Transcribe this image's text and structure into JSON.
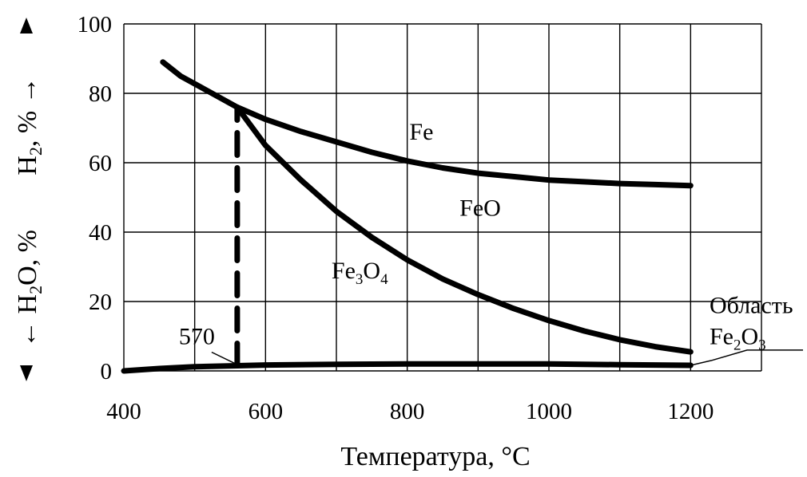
{
  "chart_data": {
    "type": "line",
    "xlabel": "Температура, °C",
    "ylabel_top": {
      "base": "H",
      "sub": "2",
      "rest": ", % →"
    },
    "ylabel_bottom": {
      "prefix": "← H",
      "sub": "2",
      "rest": "O, %"
    },
    "x_ticks": [
      400,
      600,
      800,
      1000,
      1200
    ],
    "y_ticks": [
      0,
      20,
      40,
      60,
      80,
      100
    ],
    "xlim": [
      400,
      1300
    ],
    "ylim": [
      0,
      100
    ],
    "grid": true,
    "series": [
      {
        "x": [
          455,
          480,
          520,
          560,
          600,
          650,
          700,
          750,
          800,
          850,
          900,
          950,
          1000,
          1050,
          1100,
          1150,
          1200
        ],
        "y": [
          89,
          85,
          80.5,
          76,
          72.5,
          69,
          66,
          63,
          60.5,
          58.5,
          57,
          56,
          55,
          54.5,
          54,
          53.7,
          53.4
        ]
      },
      {
        "x": [
          560,
          600,
          650,
          700,
          750,
          800,
          850,
          900,
          950,
          1000,
          1050,
          1100,
          1150,
          1200
        ],
        "y": [
          76,
          65,
          55,
          46,
          38.5,
          32,
          26.5,
          22,
          18,
          14.5,
          11.5,
          9,
          7,
          5.5
        ]
      },
      {
        "x": [
          400,
          450,
          500,
          560,
          600,
          700,
          800,
          900,
          1000,
          1100,
          1200
        ],
        "y": [
          0,
          0.7,
          1.2,
          1.5,
          1.7,
          1.9,
          2,
          2,
          2,
          1.8,
          1.6
        ]
      },
      {
        "style": "dashed",
        "x": [
          560,
          560
        ],
        "y": [
          1.5,
          76
        ]
      }
    ],
    "annotations": [
      {
        "label": "Fe",
        "x": 820,
        "y": 69
      },
      {
        "label": "FeO",
        "x": 903,
        "y": 47
      },
      {
        "label": {
          "parts": [
            "Fe",
            "3",
            "O",
            "4"
          ]
        },
        "x": 733,
        "y": 29
      },
      {
        "label": "570",
        "x": 508,
        "y": 10
      },
      {
        "label": "Область",
        "x": 1380,
        "y": 19
      },
      {
        "label": {
          "parts": [
            "Fe",
            "2",
            "O",
            "3"
          ]
        },
        "x": 1380,
        "y": 10
      }
    ]
  }
}
